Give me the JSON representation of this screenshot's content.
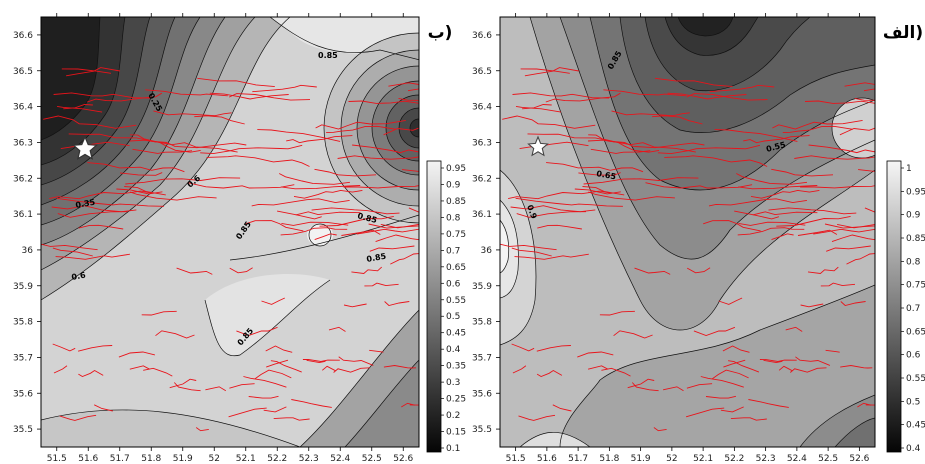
{
  "panels": [
    {
      "id": "b",
      "title": "ب)",
      "x_ticks": [
        "51.5",
        "51.6",
        "51.7",
        "51.8",
        "51.9",
        "52",
        "52.1",
        "52.2",
        "52.3",
        "52.4",
        "52.5",
        "52.6"
      ],
      "y_ticks": [
        "36.6",
        "36.5",
        "36.4",
        "36.3",
        "36.2",
        "36.1",
        "36",
        "35.9",
        "35.8",
        "35.7",
        "35.6",
        "35.5"
      ],
      "colorbar_ticks": [
        "0.95",
        "0.9",
        "0.85",
        "0.8",
        "0.75",
        "0.7",
        "0.65",
        "0.6",
        "0.55",
        "0.5",
        "0.45",
        "0.4",
        "0.35",
        "0.3",
        "0.25",
        "0.2",
        "0.15",
        "0.1"
      ],
      "contour_labels": [
        "0.85",
        "0.25",
        "0.6",
        "0.35",
        "0.85",
        "0.85",
        "0.85",
        "0.6",
        "0.85"
      ]
    },
    {
      "id": "alef",
      "title": "الف)",
      "x_ticks": [
        "51.5",
        "51.6",
        "51.7",
        "51.8",
        "51.9",
        "52",
        "52.1",
        "52.2",
        "52.3",
        "52.4",
        "52.5",
        "52.6"
      ],
      "y_ticks": [
        "36.6",
        "36.5",
        "36.4",
        "36.3",
        "36.2",
        "36.1",
        "36",
        "35.9",
        "35.8",
        "35.7",
        "35.6",
        "35.5"
      ],
      "colorbar_ticks": [
        "1",
        "0.95",
        "0.9",
        "0.85",
        "0.8",
        "0.75",
        "0.7",
        "0.65",
        "0.6",
        "0.55",
        "0.5",
        "0.45",
        "0.4"
      ],
      "contour_labels": [
        "0.85",
        "0.55",
        "0.65",
        "0.9"
      ]
    }
  ],
  "colors": {
    "fault": "#e8141b",
    "star_fill": "#ffffff",
    "star_stroke": "#333333"
  }
}
